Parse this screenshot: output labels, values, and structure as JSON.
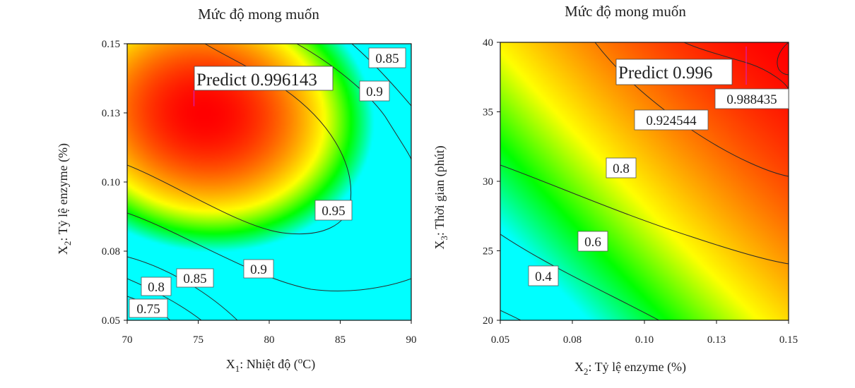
{
  "chart_data": [
    {
      "type": "heatmap",
      "title": "Mức độ mong muốn",
      "xlabel": {
        "main": "X",
        "sub": "1",
        "rest": ": Nhiệt độ (",
        "sup": "o",
        "end": "C)"
      },
      "ylabel": {
        "main": "X",
        "sub": "2",
        "rest": ": Tỷ lệ enzyme (%)"
      },
      "xlim": [
        70,
        90
      ],
      "ylim": [
        0.05,
        0.15
      ],
      "xticks": [
        "70",
        "75",
        "80",
        "85",
        "90"
      ],
      "yticks": [
        "0.05",
        "0.08",
        "0.10",
        "0.13",
        "0.15"
      ],
      "contour_labels": [
        "0.75",
        "0.8",
        "0.85",
        "0.9",
        "0.95",
        "0.9",
        "0.85",
        "0.9",
        "0.85"
      ],
      "prediction": {
        "label": "Predict 0.996143",
        "x": 74.7,
        "y": 0.132
      },
      "colorscale": [
        "#00ffff",
        "#00ff00",
        "#ffff00",
        "#ff8000",
        "#ff0000"
      ]
    },
    {
      "type": "heatmap",
      "title": "Mức độ mong muốn",
      "xlabel": {
        "main": "X",
        "sub": "2",
        "rest": ": Tỷ lệ enzyme (%)"
      },
      "ylabel": {
        "main": "X",
        "sub": "3",
        "rest": ": Thời gian (phút)"
      },
      "xlim": [
        0.05,
        0.15
      ],
      "ylim": [
        20,
        40
      ],
      "xticks": [
        "0.05",
        "0.08",
        "0.10",
        "0.13",
        "0.15"
      ],
      "yticks": [
        "20",
        "25",
        "30",
        "35",
        "40"
      ],
      "contour_labels": [
        "0.4",
        "0.6",
        "0.8",
        "0.924544",
        "0.988435"
      ],
      "prediction": {
        "label": "Predict 0.996",
        "x": 0.1353,
        "y": 39.7
      },
      "colorscale": [
        "#00ffff",
        "#00ff00",
        "#ffff00",
        "#ff8000",
        "#ff0000"
      ]
    }
  ]
}
